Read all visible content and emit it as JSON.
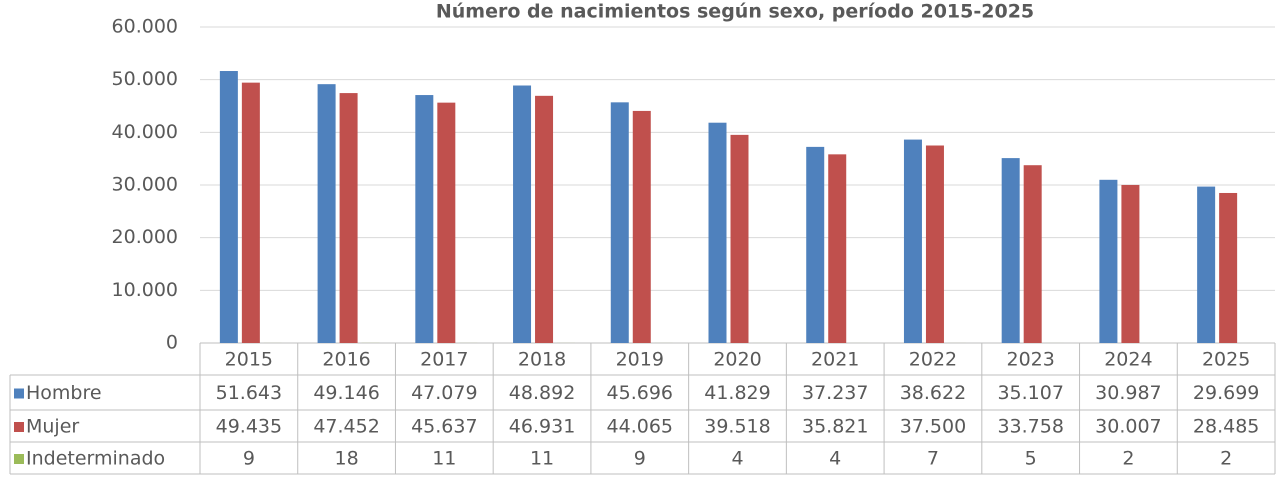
{
  "chart_data": {
    "type": "bar",
    "title": "Número de nacimientos según sexo, período 2015-2025",
    "categories": [
      "2015",
      "2016",
      "2017",
      "2018",
      "2019",
      "2020",
      "2021",
      "2022",
      "2023",
      "2024",
      "2025"
    ],
    "series": [
      {
        "name": "Hombre",
        "color": "#4f81bd",
        "values": [
          51643,
          49146,
          47079,
          48892,
          45696,
          41829,
          37237,
          38622,
          35107,
          30987,
          29699
        ],
        "value_labels": [
          "51.643",
          "49.146",
          "47.079",
          "48.892",
          "45.696",
          "41.829",
          "37.237",
          "38.622",
          "35.107",
          "30.987",
          "29.699"
        ]
      },
      {
        "name": "Mujer",
        "color": "#c0504d",
        "values": [
          49435,
          47452,
          45637,
          46931,
          44065,
          39518,
          35821,
          37500,
          33758,
          30007,
          28485
        ],
        "value_labels": [
          "49.435",
          "47.452",
          "45.637",
          "46.931",
          "44.065",
          "39.518",
          "35.821",
          "37.500",
          "33.758",
          "30.007",
          "28.485"
        ]
      },
      {
        "name": "Indeterminado",
        "color": "#9bbb59",
        "values": [
          9,
          18,
          11,
          11,
          9,
          4,
          4,
          7,
          5,
          2,
          2
        ]
      }
    ],
    "ylim": [
      0,
      60000
    ],
    "yticks": [
      0,
      {
        "value": 10000,
        "label": "10.000"
      },
      {
        "value": 20000,
        "label": "20.000"
      },
      {
        "value": 30000,
        "label": "30.000"
      },
      {
        "value": 40000,
        "label": "40.000"
      },
      {
        "value": 50000,
        "label": "50.000"
      },
      {
        "value": 60000,
        "label": "60.000"
      }
    ],
    "grid": true
  }
}
